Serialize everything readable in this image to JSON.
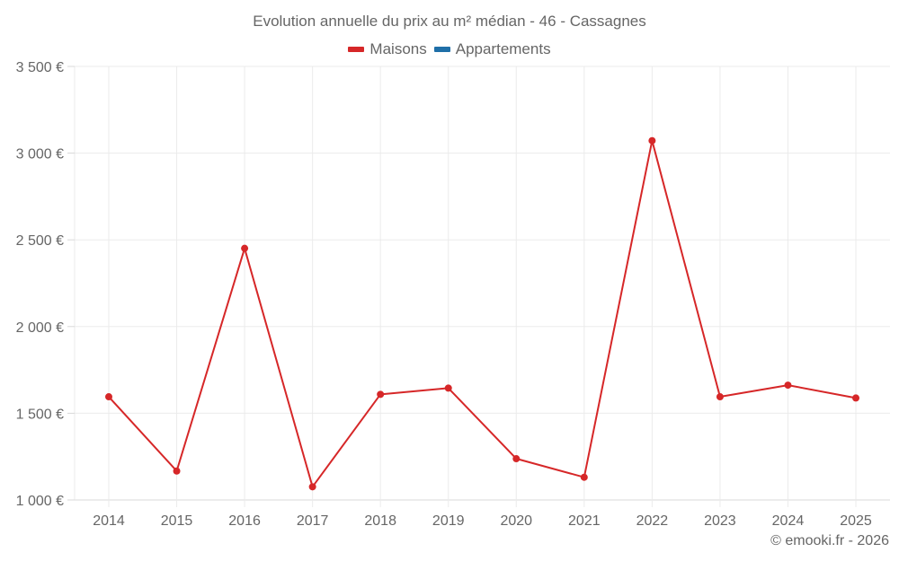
{
  "chart_data": {
    "type": "line",
    "title": "Evolution annuelle du prix au m² médian - 46 - Cassagnes",
    "xlabel": "",
    "ylabel": "",
    "categories": [
      "2014",
      "2015",
      "2016",
      "2017",
      "2018",
      "2019",
      "2020",
      "2021",
      "2022",
      "2023",
      "2024",
      "2025"
    ],
    "series": [
      {
        "name": "Maisons",
        "color": "#d62728",
        "values": [
          1595,
          1167,
          2451,
          1076,
          1609,
          1645,
          1238,
          1131,
          3072,
          1595,
          1662,
          1588
        ]
      },
      {
        "name": "Appartements",
        "color": "#1f6fa8",
        "values": []
      }
    ],
    "ylim": [
      1000,
      3500
    ],
    "yticks": [
      1000,
      1500,
      2000,
      2500,
      3000,
      3500
    ],
    "ytick_labels": [
      "1 000 €",
      "1 500 €",
      "2 000 €",
      "2 500 €",
      "3 000 €",
      "3 500 €"
    ],
    "grid": true,
    "legend_position": "top"
  },
  "legend": {
    "items": [
      {
        "label": "Maisons",
        "color": "#d62728"
      },
      {
        "label": "Appartements",
        "color": "#1f6fa8"
      }
    ]
  },
  "credit": "© emooki.fr - 2026"
}
